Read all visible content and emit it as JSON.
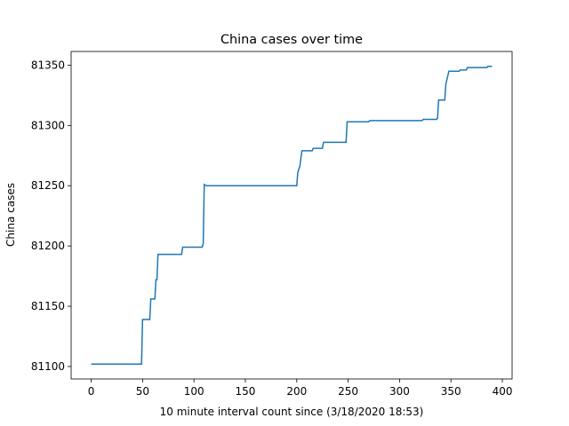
{
  "chart_data": {
    "type": "line",
    "title": "China cases over time",
    "xlabel": "10 minute interval count since (3/18/2020 18:53)",
    "ylabel": "China cases",
    "x": [
      0,
      49,
      50,
      57,
      58,
      62,
      63,
      64,
      65,
      88,
      89,
      108,
      109,
      110,
      112,
      200,
      201,
      203,
      205,
      215,
      216,
      225,
      226,
      248,
      249,
      270,
      271,
      322,
      323,
      336,
      337,
      338,
      344,
      345,
      348,
      358,
      359,
      365,
      366,
      385,
      386,
      390
    ],
    "series": [
      {
        "name": "China",
        "color": "#1f77b4",
        "values": [
          81102,
          81102,
          81139,
          81139,
          81156,
          81156,
          81172,
          81172,
          81193,
          81193,
          81199,
          81199,
          81202,
          81251,
          81250,
          81250,
          81261,
          81266,
          81279,
          81279,
          81281,
          81281,
          81286,
          81286,
          81303,
          81303,
          81304,
          81304,
          81305,
          81305,
          81306,
          81321,
          81321,
          81334,
          81345,
          81345,
          81346,
          81346,
          81348,
          81348,
          81349,
          81349
        ]
      }
    ],
    "xlim": [
      -19.5,
      409.5
    ],
    "ylim": [
      81089.65,
      81361.35
    ],
    "xticks": [
      0,
      50,
      100,
      150,
      200,
      250,
      300,
      350,
      400
    ],
    "yticks": [
      81100,
      81150,
      81200,
      81250,
      81300,
      81350
    ],
    "grid": false
  }
}
